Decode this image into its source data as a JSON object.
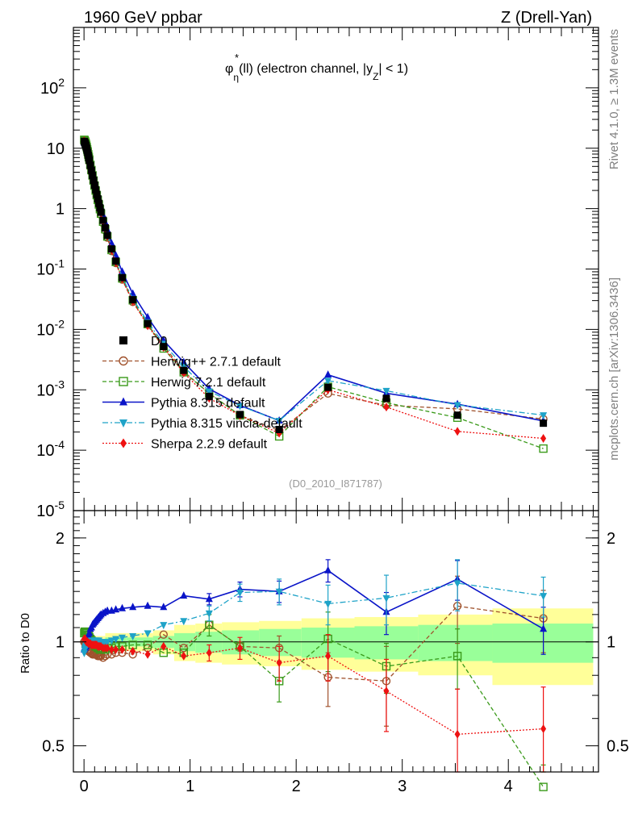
{
  "header": {
    "left": "1960 GeV ppbar",
    "right": "Z (Drell-Yan)"
  },
  "side": {
    "rivet": "Rivet 4.1.0, ≥ 1.3M events",
    "mcplots": "mcplots.cern.ch [arXiv:1306.3436]"
  },
  "colors": {
    "data": "#000000",
    "herwigpp": "#a0522d",
    "herwig7": "#3a9a1a",
    "pythia": "#0a14c8",
    "vincia": "#1fa3c8",
    "sherpa": "#ee1111",
    "band_outer": "#ffff99",
    "band_inner": "#99ff99"
  },
  "chart_data": [
    {
      "type": "line",
      "panel": "main",
      "title": "φ*η(ll) (electron channel, |yZ| < 1)",
      "title_parts": {
        "phi": "φ",
        "star": "*",
        "eta": "η",
        "arg": "(ll) (electron channel, |y",
        "z": "Z",
        "tail": "| < 1)"
      },
      "yscale": "log",
      "xlim": [
        -0.1,
        4.85
      ],
      "ylim": [
        1e-05,
        1000
      ],
      "ytick_labels": [
        {
          "base": "10",
          "exp": "-5",
          "value": 1e-05
        },
        {
          "base": "10",
          "exp": "-4",
          "value": 0.0001
        },
        {
          "base": "10",
          "exp": "-3",
          "value": 0.001
        },
        {
          "base": "10",
          "exp": "-2",
          "value": 0.01
        },
        {
          "base": "10",
          "exp": "-1",
          "value": 0.1
        },
        {
          "base": "1",
          "exp": "",
          "value": 1
        },
        {
          "base": "10",
          "exp": "",
          "value": 10
        },
        {
          "base": "10",
          "exp": "2",
          "value": 100
        }
      ],
      "x": [
        0.002,
        0.006,
        0.01,
        0.014,
        0.018,
        0.022,
        0.026,
        0.03,
        0.035,
        0.04,
        0.045,
        0.05,
        0.06,
        0.07,
        0.08,
        0.09,
        0.1,
        0.11,
        0.12,
        0.13,
        0.14,
        0.15,
        0.16,
        0.18,
        0.2,
        0.22,
        0.26,
        0.3,
        0.36,
        0.46,
        0.6,
        0.75,
        0.94,
        1.18,
        1.47,
        1.84,
        2.3,
        2.85,
        3.52,
        4.33
      ],
      "legend_position": "middle-left",
      "watermark": "(D0_2010_I871787)",
      "series": [
        {
          "name": "D0",
          "legend": "D0",
          "key": "data",
          "marker": "square",
          "line": "none",
          "values": [
            13,
            12.6,
            12.1,
            11.6,
            11.0,
            10.4,
            9.8,
            9.1,
            8.4,
            7.6,
            6.9,
            6.3,
            5.2,
            4.3,
            3.55,
            2.95,
            2.45,
            2.05,
            1.72,
            1.45,
            1.22,
            1.03,
            0.87,
            0.64,
            0.48,
            0.36,
            0.215,
            0.135,
            0.072,
            0.031,
            0.0125,
            0.0052,
            0.0021,
            0.00078,
            0.00039,
            0.00022,
            0.0011,
            0.00072,
            0.00038,
            0.00028
          ]
        },
        {
          "name": "Herwig++ 2.7.1 default",
          "legend": "Herwig++ 2.7.1 default",
          "key": "herwigpp",
          "marker": "open-circle",
          "line": "dashed",
          "ratio": [
            1.0,
            1.0,
            0.99,
            0.98,
            0.97,
            0.96,
            0.96,
            0.95,
            0.95,
            0.94,
            0.94,
            0.94,
            0.93,
            0.93,
            0.92,
            0.92,
            0.92,
            0.92,
            0.92,
            0.91,
            0.91,
            0.91,
            0.91,
            0.9,
            0.91,
            0.92,
            0.92,
            0.93,
            0.93,
            0.92,
            0.96,
            1.05,
            0.96,
            1.12,
            0.97,
            0.96,
            0.79,
            0.77,
            1.27,
            1.17
          ]
        },
        {
          "name": "Herwig 7.2.1 default",
          "legend": "Herwig 7.2.1 default",
          "key": "herwig7",
          "marker": "open-square",
          "line": "dashed",
          "ratio": [
            1.06,
            1.07,
            1.07,
            1.07,
            1.07,
            1.06,
            1.06,
            1.05,
            1.05,
            1.04,
            1.04,
            1.03,
            1.02,
            1.01,
            1.0,
            0.99,
            0.98,
            0.97,
            0.97,
            0.96,
            0.96,
            0.95,
            0.95,
            0.95,
            0.95,
            0.96,
            0.96,
            0.97,
            0.97,
            0.98,
            0.98,
            0.93,
            0.93,
            1.12,
            0.97,
            0.77,
            1.02,
            0.85,
            0.91,
            0.38
          ]
        },
        {
          "name": "Pythia 8.315 default",
          "legend": "Pythia 8.315 default",
          "key": "pythia",
          "marker": "triangle-up",
          "line": "solid",
          "ratio": [
            0.95,
            0.96,
            0.96,
            0.97,
            0.97,
            0.98,
            0.98,
            0.99,
            1.0,
            1.02,
            1.04,
            1.06,
            1.09,
            1.1,
            1.12,
            1.13,
            1.14,
            1.15,
            1.16,
            1.17,
            1.18,
            1.19,
            1.2,
            1.21,
            1.22,
            1.23,
            1.23,
            1.24,
            1.25,
            1.26,
            1.27,
            1.26,
            1.36,
            1.33,
            1.42,
            1.4,
            1.61,
            1.22,
            1.52,
            1.09
          ]
        },
        {
          "name": "Pythia 8.315 vincia-default",
          "legend": "Pythia 8.315 vincia-default",
          "key": "vincia",
          "marker": "triangle-down",
          "line": "dashdot",
          "ratio": [
            0.93,
            0.95,
            0.96,
            0.97,
            0.97,
            0.98,
            0.98,
            0.98,
            0.99,
            0.99,
            0.99,
            1.0,
            1.0,
            1.01,
            1.01,
            1.01,
            1.01,
            1.01,
            1.01,
            1.01,
            1.01,
            1.0,
            1.0,
            1.0,
            1.0,
            1.0,
            1.01,
            1.02,
            1.03,
            1.04,
            1.06,
            1.12,
            1.15,
            1.21,
            1.39,
            1.4,
            1.29,
            1.34,
            1.48,
            1.36
          ]
        },
        {
          "name": "Sherpa 2.2.9 default",
          "legend": "Sherpa 2.2.9 default",
          "key": "sherpa",
          "marker": "diamond",
          "line": "dotted",
          "ratio": [
            1.02,
            1.02,
            1.02,
            1.01,
            1.01,
            1.0,
            1.0,
            1.0,
            1.0,
            0.99,
            0.99,
            0.99,
            0.99,
            0.98,
            0.98,
            0.98,
            0.98,
            0.98,
            0.98,
            0.97,
            0.97,
            0.97,
            0.97,
            0.96,
            0.96,
            0.96,
            0.95,
            0.95,
            0.95,
            0.94,
            0.92,
            0.97,
            0.91,
            0.93,
            0.96,
            0.87,
            0.91,
            0.72,
            0.54,
            0.56
          ]
        }
      ]
    },
    {
      "type": "line",
      "panel": "ratio",
      "ylabel": "Ratio to D0",
      "yscale": "log",
      "ylim": [
        0.42,
        2.4
      ],
      "xlim": [
        -0.1,
        4.85
      ],
      "yticks": [
        0.5,
        1,
        2
      ],
      "ytick_labels": [
        "0.5",
        "1",
        "2"
      ],
      "xticks": [
        0,
        1,
        2,
        3,
        4
      ],
      "xtick_labels": [
        "0",
        "1",
        "2",
        "3",
        "4"
      ],
      "bands": {
        "edges": [
          0.0,
          0.2,
          0.4,
          0.65,
          0.85,
          1.05,
          1.3,
          1.65,
          2.05,
          2.55,
          3.15,
          3.85,
          4.8
        ],
        "outer_half_width": [
          0.04,
          0.06,
          0.06,
          0.08,
          0.12,
          0.13,
          0.14,
          0.15,
          0.17,
          0.18,
          0.2,
          0.25
        ],
        "inner_half_width": [
          0.02,
          0.03,
          0.03,
          0.04,
          0.06,
          0.07,
          0.08,
          0.09,
          0.1,
          0.11,
          0.12,
          0.13
        ]
      },
      "error_bars": {
        "herwigpp": [
          [
            1.46,
            0.03
          ],
          [
            1.84,
            0.08
          ],
          [
            2.3,
            0.14
          ],
          [
            2.85,
            0.2
          ],
          [
            3.52,
            0.28
          ],
          [
            4.33,
            0.24
          ]
        ],
        "herwig7": [
          [
            1.16,
            0.08
          ],
          [
            1.84,
            0.1
          ],
          [
            2.3,
            0.2
          ],
          [
            2.85,
            0.14
          ],
          [
            3.52,
            0.18
          ],
          [
            4.33,
            0.06
          ]
        ],
        "pythia": [
          [
            1.18,
            0.05
          ],
          [
            1.47,
            0.07
          ],
          [
            1.84,
            0.1
          ],
          [
            2.3,
            0.12
          ],
          [
            2.85,
            0.17
          ],
          [
            3.52,
            0.2
          ],
          [
            4.33,
            0.17
          ]
        ],
        "vincia": [
          [
            1.18,
            0.06
          ],
          [
            1.47,
            0.08
          ],
          [
            1.84,
            0.12
          ],
          [
            2.3,
            0.17
          ],
          [
            2.85,
            0.22
          ],
          [
            3.52,
            0.25
          ],
          [
            4.33,
            0.18
          ]
        ],
        "sherpa": [
          [
            1.18,
            0.05
          ],
          [
            1.47,
            0.07
          ],
          [
            1.84,
            0.1
          ],
          [
            2.3,
            0.14
          ],
          [
            2.85,
            0.17
          ],
          [
            3.52,
            0.19
          ],
          [
            4.33,
            0.18
          ]
        ]
      }
    }
  ]
}
